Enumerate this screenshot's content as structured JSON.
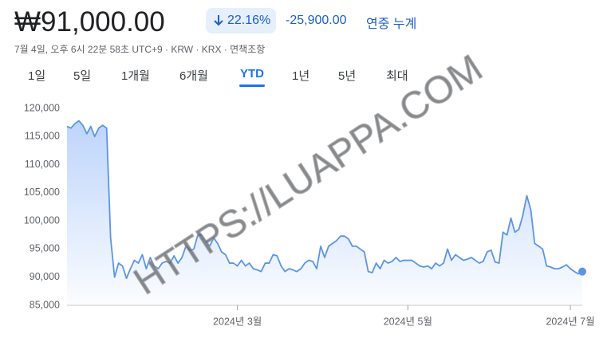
{
  "price": "₩91,000.00",
  "change_pct": "22.16%",
  "change": "-25,900.00",
  "period": "연중 누계",
  "subtitle": "7월 4일, 오후 6시 22분 58초 UTC+9 · KRW · KRX · 면책조항",
  "tabs": [
    "1일",
    "5일",
    "1개월",
    "6개월",
    "YTD",
    "1년",
    "5년",
    "최대"
  ],
  "selected_tab": "YTD",
  "watermark": "HTTPS://LUAPPA.COM",
  "chart_data": {
    "type": "line",
    "color": "#5b95e4",
    "categories": [
      null,
      null,
      null,
      null,
      null,
      null,
      null,
      null,
      null,
      null,
      null,
      null,
      null,
      null,
      null,
      null,
      null,
      null,
      null,
      null,
      null,
      null,
      null,
      null,
      null,
      null,
      null,
      null,
      null,
      null,
      null,
      null,
      null,
      null,
      null,
      null,
      null,
      null,
      null,
      null,
      null,
      null,
      null,
      "2024년 3월",
      null,
      null,
      null,
      null,
      null,
      null,
      null,
      null,
      null,
      null,
      null,
      null,
      null,
      null,
      null,
      null,
      null,
      null,
      null,
      null,
      null,
      null,
      null,
      null,
      null,
      null,
      null,
      null,
      null,
      null,
      null,
      null,
      null,
      null,
      null,
      null,
      null,
      null,
      null,
      null,
      null,
      null,
      "2024년 5월",
      null,
      null,
      null,
      null,
      null,
      null,
      null,
      null,
      null,
      null,
      null,
      null,
      null,
      null,
      null,
      null,
      null,
      null,
      null,
      null,
      null,
      null,
      null,
      null,
      null,
      null,
      null,
      null,
      null,
      null,
      null,
      null,
      null,
      null,
      null,
      null,
      null,
      null,
      null,
      null,
      "2024년 7월",
      null,
      null,
      null
    ],
    "values": [
      116800,
      116500,
      117300,
      117800,
      117000,
      115500,
      116800,
      115000,
      116500,
      117000,
      116500,
      97000,
      90000,
      92500,
      92000,
      89800,
      91500,
      93000,
      92500,
      94000,
      91500,
      93500,
      92000,
      91500,
      92500,
      92800,
      92500,
      93800,
      92500,
      93500,
      95500,
      94800,
      95000,
      97500,
      97500,
      96500,
      95500,
      97000,
      96000,
      94500,
      94000,
      92500,
      92500,
      92000,
      93000,
      92000,
      92500,
      91500,
      91300,
      91000,
      92500,
      92500,
      94000,
      93800,
      92000,
      91000,
      91500,
      91300,
      91000,
      91500,
      92500,
      93000,
      92800,
      91500,
      95500,
      93500,
      95500,
      96000,
      96500,
      97300,
      97300,
      96800,
      95500,
      95500,
      95000,
      94500,
      91000,
      90800,
      92500,
      91500,
      93000,
      92500,
      92800,
      93500,
      92800,
      93000,
      93000,
      93000,
      92500,
      92000,
      91800,
      92000,
      91500,
      92500,
      92000,
      92500,
      95000,
      93000,
      94000,
      93500,
      93000,
      93200,
      93500,
      93000,
      92500,
      92800,
      94500,
      94800,
      92700,
      92500,
      98000,
      97500,
      100500,
      98000,
      98500,
      101000,
      104500,
      102000,
      96000,
      95500,
      95000,
      92000,
      91800,
      91500,
      91500,
      91800,
      92200,
      91500,
      91000,
      90600,
      91000
    ],
    "ylim": [
      85000,
      120000
    ],
    "yticks": [
      {
        "value": 85000,
        "label": "85,000"
      },
      {
        "value": 90000,
        "label": "90,000"
      },
      {
        "value": 95000,
        "label": "95,000"
      },
      {
        "value": 100000,
        "label": "100,000"
      },
      {
        "value": 105000,
        "label": "105,000"
      },
      {
        "value": 110000,
        "label": "110,000"
      },
      {
        "value": 115000,
        "label": "115,000"
      },
      {
        "value": 120000,
        "label": "120,000"
      }
    ]
  }
}
